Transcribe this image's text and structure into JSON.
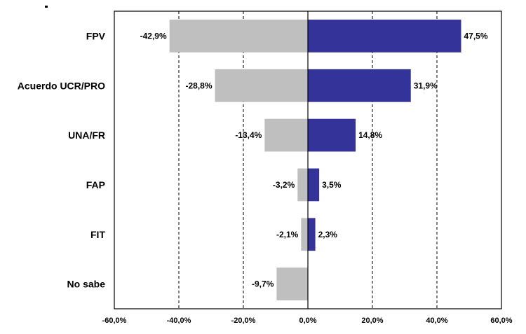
{
  "chart_data": {
    "type": "bar",
    "orientation": "horizontal",
    "categories": [
      "FPV",
      "Acuerdo UCR/PRO",
      "UNA/FR",
      "FAP",
      "FIT",
      "No sabe"
    ],
    "series": [
      {
        "values": [
          -42.9,
          -28.8,
          -13.4,
          -3.2,
          -2.1,
          -9.7
        ],
        "labels": [
          "-42,9%",
          "-28,8%",
          "-13,4%",
          "-3,2%",
          "-2,1%",
          "-9,7%"
        ],
        "color": "#bfbfbf"
      },
      {
        "values": [
          47.5,
          31.9,
          14.8,
          3.5,
          2.3,
          null
        ],
        "labels": [
          "47,5%",
          "31,9%",
          "14,8%",
          "3,5%",
          "2,3%",
          ""
        ],
        "color": "#333399"
      }
    ],
    "xlim": [
      -60,
      60
    ],
    "xticks": [
      -60,
      -40,
      -20,
      0,
      20,
      40,
      60
    ],
    "xtick_labels": [
      "-60,0%",
      "-40,0%",
      "-20,0%",
      "0,0%",
      "20,0%",
      "40,0%",
      "60,0%"
    ],
    "grid": "vertical-dashed",
    "legend": "none",
    "title": "",
    "xlabel": "",
    "ylabel": ""
  }
}
